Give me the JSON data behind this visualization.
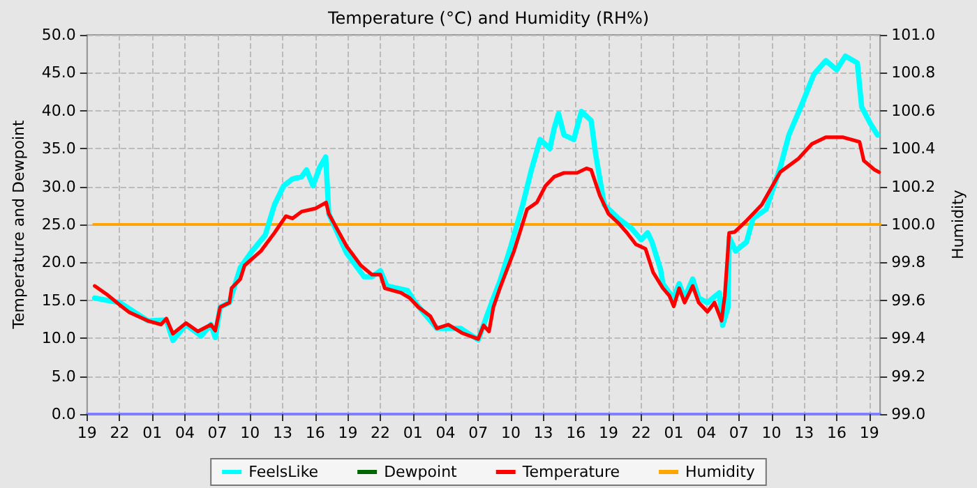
{
  "chart_data": {
    "type": "line",
    "title": "Temperature (°C) and Humidity (RH%)",
    "ylabel": "Temperature and Dewpoint",
    "y2label": "Humidity",
    "xlim": [
      "--01-01T19:00",
      "--01-04T20:00"
    ],
    "xticks": [
      {
        "value": "--01-01T19:00",
        "label": "19"
      },
      {
        "value": "--01-01T22:00",
        "label": "22"
      },
      {
        "value": "--01-02T01:00",
        "label": "01"
      },
      {
        "value": "--01-02T04:00",
        "label": "04"
      },
      {
        "value": "--01-02T07:00",
        "label": "07"
      },
      {
        "value": "--01-02T10:00",
        "label": "10"
      },
      {
        "value": "--01-02T13:00",
        "label": "13"
      },
      {
        "value": "--01-02T16:00",
        "label": "16"
      },
      {
        "value": "--01-02T19:00",
        "label": "19"
      },
      {
        "value": "--01-02T22:00",
        "label": "22"
      },
      {
        "value": "--01-03T01:00",
        "label": "01"
      },
      {
        "value": "--01-03T04:00",
        "label": "04"
      },
      {
        "value": "--01-03T07:00",
        "label": "07"
      },
      {
        "value": "--01-03T10:00",
        "label": "10"
      },
      {
        "value": "--01-03T13:00",
        "label": "13"
      },
      {
        "value": "--01-03T16:00",
        "label": "16"
      },
      {
        "value": "--01-03T19:00",
        "label": "19"
      },
      {
        "value": "--01-03T22:00",
        "label": "22"
      },
      {
        "value": "--01-04T01:00",
        "label": "01"
      },
      {
        "value": "--01-04T04:00",
        "label": "04"
      },
      {
        "value": "--01-04T07:00",
        "label": "07"
      },
      {
        "value": "--01-04T10:00",
        "label": "10"
      },
      {
        "value": "--01-04T13:00",
        "label": "13"
      },
      {
        "value": "--01-04T16:00",
        "label": "16"
      },
      {
        "value": "--01-04T19:00",
        "label": "19"
      }
    ],
    "ylim": [
      0,
      50
    ],
    "yticks": [
      {
        "value": 0,
        "label": "0.0"
      },
      {
        "value": 5,
        "label": "5.0"
      },
      {
        "value": 10,
        "label": "10.0"
      },
      {
        "value": 15,
        "label": "15.0"
      },
      {
        "value": 20,
        "label": "20.0"
      },
      {
        "value": 25,
        "label": "25.0"
      },
      {
        "value": 30,
        "label": "30.0"
      },
      {
        "value": 35,
        "label": "35.0"
      },
      {
        "value": 40,
        "label": "40.0"
      },
      {
        "value": 45,
        "label": "45.0"
      },
      {
        "value": 50,
        "label": "50.0"
      }
    ],
    "y2lim": [
      99,
      101
    ],
    "y2ticks": [
      {
        "value": 99,
        "label": "99.0"
      },
      {
        "value": 99.2,
        "label": "99.2"
      },
      {
        "value": 99.4,
        "label": "99.4"
      },
      {
        "value": 99.6,
        "label": "99.6"
      },
      {
        "value": 99.8,
        "label": "99.8"
      },
      {
        "value": 100,
        "label": "100.0"
      },
      {
        "value": 100.2,
        "label": "100.2"
      },
      {
        "value": 100.4,
        "label": "100.4"
      },
      {
        "value": 100.6,
        "label": "100.6"
      },
      {
        "value": 100.8,
        "label": "100.8"
      },
      {
        "value": 101,
        "label": "101.0"
      }
    ],
    "grid": true,
    "legend": "bottom",
    "marker": "none",
    "line_style": "solid",
    "series": [
      {
        "name": "FeelsLike",
        "color": "#00ffff",
        "x": [
          "--01-01T19:42",
          "--01-01T20:48",
          "--01-01T22:00",
          "--01-02T00:36",
          "--01-02T02:18",
          "--01-02T02:54",
          "--01-02T04:06",
          "--01-02T05:30",
          "--01-02T06:24",
          "--01-02T06:48",
          "--01-02T07:15",
          "--01-02T08:06",
          "--01-02T09:06",
          "--01-02T10:12",
          "--01-02T11:24",
          "--01-02T12:15",
          "--01-02T13:06",
          "--01-02T13:54",
          "--01-02T14:45",
          "--01-02T15:12",
          "--01-02T15:48",
          "--01-02T16:24",
          "--01-02T16:58",
          "--01-02T17:15",
          "--01-02T18:54",
          "--01-02T20:30",
          "--01-02T21:12",
          "--01-02T22:00",
          "--01-02T22:36",
          "--01-03T00:30",
          "--01-03T01:12",
          "--01-03T03:12",
          "--01-03T05:24",
          "--01-03T07:00",
          "--01-03T08:24",
          "--01-03T09:00",
          "--01-03T10:00",
          "--01-03T11:06",
          "--01-03T11:54",
          "--01-03T12:42",
          "--01-03T13:36",
          "--01-03T14:00",
          "--01-03T14:24",
          "--01-03T14:54",
          "--01-03T15:48",
          "--01-03T16:30",
          "--01-03T17:24",
          "--01-03T17:48",
          "--01-03T18:36",
          "--01-03T19:54",
          "--01-03T21:06",
          "--01-03T22:00",
          "--01-03T22:36",
          "--01-03T23:00",
          "--01-03T23:48",
          "--01-04T00:00",
          "--01-04T00:36",
          "--01-04T01:00",
          "--01-04T01:30",
          "--01-04T02:00",
          "--01-04T02:45",
          "--01-04T03:18",
          "--01-04T04:06",
          "--01-04T05:12",
          "--01-04T05:30",
          "--01-04T06:00",
          "--01-04T06:06",
          "--01-04T06:42",
          "--01-04T07:42",
          "--01-04T08:18",
          "--01-04T09:30",
          "--01-04T10:48",
          "--01-04T11:36",
          "--01-04T12:42",
          "--01-04T13:54",
          "--01-04T15:00",
          "--01-04T16:00",
          "--01-04T16:48",
          "--01-04T17:54",
          "--01-04T18:18",
          "--01-04T19:06",
          "--01-04T19:45"
        ],
        "values": [
          15.3,
          15,
          14.7,
          12.3,
          12.4,
          9.7,
          11.8,
          10.3,
          11.8,
          10.1,
          14.1,
          14.7,
          19.3,
          21.5,
          23.6,
          27.6,
          30.1,
          31,
          31.3,
          32.2,
          30.1,
          32.5,
          33.9,
          26.4,
          21.2,
          18.1,
          18.1,
          18.9,
          16.9,
          16.3,
          14.7,
          11.3,
          11.3,
          9.8,
          15.3,
          17.5,
          22.1,
          27.6,
          32.2,
          36.2,
          35,
          37.7,
          39.6,
          36.8,
          36.2,
          39.9,
          38.7,
          34.4,
          27.6,
          25.8,
          24.5,
          23,
          23.9,
          22.7,
          19,
          17.2,
          16,
          15.3,
          17.2,
          15.3,
          17.8,
          15.3,
          14.7,
          16,
          11.7,
          14.1,
          23.3,
          21.5,
          22.7,
          25.8,
          27,
          32.5,
          36.8,
          40.5,
          44.8,
          46.6,
          45.4,
          47.2,
          46.3,
          40.5,
          38.3,
          36.8
        ]
      },
      {
        "name": "Dewpoint",
        "color": "#006400"
      },
      {
        "name": "Temperature",
        "color": "#ff0000",
        "x": [
          "--01-01T19:42",
          "--01-01T20:48",
          "--01-01T22:00",
          "--01-01T22:54",
          "--01-02T00:36",
          "--01-02T01:48",
          "--01-02T02:18",
          "--01-02T02:54",
          "--01-02T04:06",
          "--01-02T05:12",
          "--01-02T06:24",
          "--01-02T06:48",
          "--01-02T07:15",
          "--01-02T08:06",
          "--01-02T08:18",
          "--01-02T09:06",
          "--01-02T09:30",
          "--01-02T11:00",
          "--01-02T12:15",
          "--01-02T13:18",
          "--01-02T13:54",
          "--01-02T14:45",
          "--01-02T16:00",
          "--01-02T17:00",
          "--01-02T17:15",
          "--01-02T18:54",
          "--01-02T20:12",
          "--01-02T21:12",
          "--01-02T22:00",
          "--01-02T22:24",
          "--01-02T23:54",
          "--01-03T00:42",
          "--01-03T01:30",
          "--01-03T02:36",
          "--01-03T03:12",
          "--01-03T04:15",
          "--01-03T05:30",
          "--01-03T07:00",
          "--01-03T07:30",
          "--01-03T08:00",
          "--01-03T08:24",
          "--01-03T09:00",
          "--01-03T10:18",
          "--01-03T11:30",
          "--01-03T12:24",
          "--01-03T13:12",
          "--01-03T14:00",
          "--01-03T14:54",
          "--01-03T16:06",
          "--01-03T16:58",
          "--01-03T17:24",
          "--01-03T18:12",
          "--01-03T19:00",
          "--01-03T19:54",
          "--01-03T20:42",
          "--01-03T21:30",
          "--01-03T22:24",
          "--01-03T23:06",
          "--01-04T00:00",
          "--01-04T00:36",
          "--01-04T01:00",
          "--01-04T01:30",
          "--01-04T02:00",
          "--01-04T02:45",
          "--01-04T03:18",
          "--01-04T04:06",
          "--01-04T04:45",
          "--01-04T05:24",
          "--01-04T05:42",
          "--01-04T06:06",
          "--01-04T06:36",
          "--01-04T07:42",
          "--01-04T09:06",
          "--01-04T10:48",
          "--01-04T12:30",
          "--01-04T13:42",
          "--01-04T15:00",
          "--01-04T16:36",
          "--01-04T18:06",
          "--01-04T18:30",
          "--01-04T19:30",
          "--01-04T19:54"
        ],
        "values": [
          16.9,
          15.8,
          14.4,
          13.4,
          12.3,
          11.8,
          12.6,
          10.6,
          12,
          10.9,
          11.8,
          11,
          14.1,
          14.7,
          16.6,
          17.8,
          19.6,
          21.5,
          23.9,
          26.1,
          25.8,
          26.7,
          27.1,
          27.9,
          26.4,
          22.1,
          19.6,
          18.4,
          18.4,
          16.6,
          16,
          15.3,
          14.1,
          12.9,
          11.3,
          11.8,
          10.7,
          9.9,
          11.7,
          10.9,
          14.1,
          16.6,
          21.5,
          27,
          27.9,
          30.1,
          31.3,
          31.8,
          31.8,
          32.4,
          32.2,
          28.8,
          26.4,
          25.2,
          23.9,
          22.4,
          21.8,
          18.7,
          16.6,
          15.6,
          14.2,
          16.6,
          14.7,
          16.9,
          14.7,
          13.5,
          14.7,
          12.3,
          15.6,
          23.9,
          24,
          25.5,
          27.6,
          31.9,
          33.7,
          35.6,
          36.5,
          36.5,
          35.9,
          33.4,
          32.2,
          31.9
        ]
      },
      {
        "name": "Humidity",
        "color": "#ffa500",
        "axis": "y2",
        "x": [
          "--01-01T19:36",
          "--01-04T20:00"
        ],
        "values": [
          100,
          100
        ]
      }
    ]
  }
}
